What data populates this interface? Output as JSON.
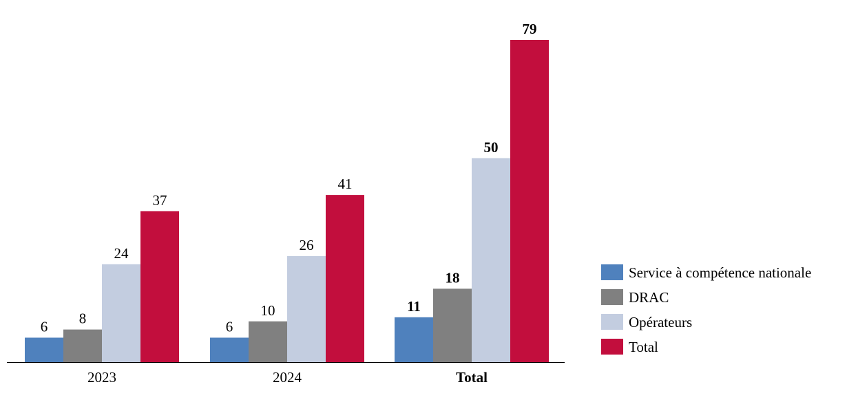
{
  "chart_data": {
    "type": "bar",
    "title": "",
    "xlabel": "",
    "ylabel": "",
    "ylim": [
      0,
      79
    ],
    "grid": false,
    "legend_position": "right",
    "categories": [
      "2023",
      "2024",
      "Total"
    ],
    "bold_categories": [
      "Total"
    ],
    "series": [
      {
        "name": "Service à compétence nationale",
        "color": "#4f81bd",
        "values": [
          6,
          6,
          11
        ]
      },
      {
        "name": "DRAC",
        "color": "#808080",
        "values": [
          8,
          10,
          18
        ]
      },
      {
        "name": "Opérateurs",
        "color": "#c3cde0",
        "values": [
          24,
          26,
          50
        ]
      },
      {
        "name": "Total",
        "color": "#c20e3d",
        "values": [
          37,
          41,
          79
        ]
      }
    ]
  }
}
